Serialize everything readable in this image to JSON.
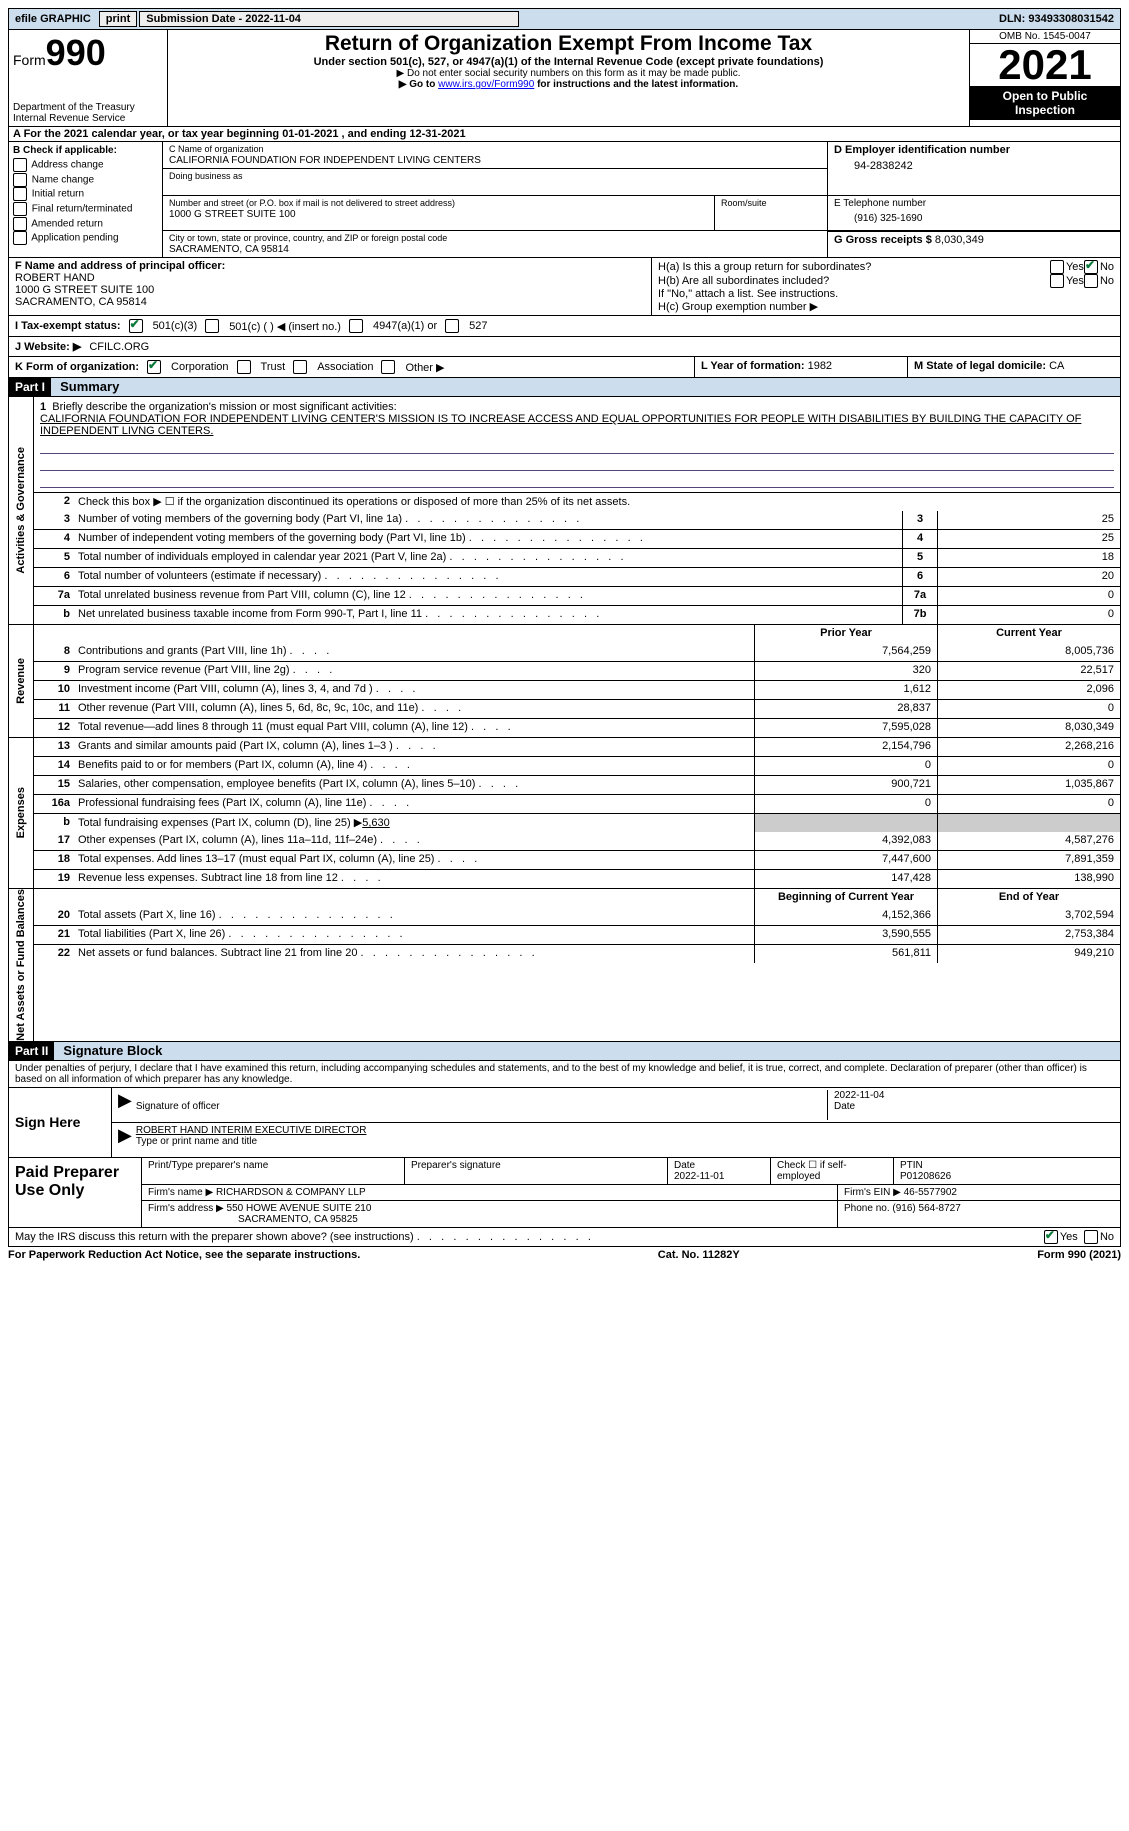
{
  "topbar": {
    "efile": "efile GRAPHIC",
    "print": "print",
    "submission": "Submission Date - 2022-11-04",
    "dln": "DLN: 93493308031542"
  },
  "header": {
    "form_label": "Form",
    "form_num": "990",
    "dept": "Department of the Treasury",
    "irs": "Internal Revenue Service",
    "title": "Return of Organization Exempt From Income Tax",
    "sub1": "Under section 501(c), 527, or 4947(a)(1) of the Internal Revenue Code (except private foundations)",
    "sub2": "▶ Do not enter social security numbers on this form as it may be made public.",
    "sub3_pre": "▶ Go to ",
    "sub3_link": "www.irs.gov/Form990",
    "sub3_post": " for instructions and the latest information.",
    "omb": "OMB No. 1545-0047",
    "year": "2021",
    "public": "Open to Public Inspection"
  },
  "section_a": "A For the 2021 calendar year, or tax year beginning 01-01-2021   , and ending 12-31-2021",
  "section_b": {
    "label": "B Check if applicable:",
    "items": [
      "Address change",
      "Name change",
      "Initial return",
      "Final return/terminated",
      "Amended return",
      "Application pending"
    ]
  },
  "section_c": {
    "name_label": "C Name of organization",
    "name": "CALIFORNIA FOUNDATION FOR INDEPENDENT LIVING CENTERS",
    "dba_label": "Doing business as",
    "street_label": "Number and street (or P.O. box if mail is not delivered to street address)",
    "street": "1000 G STREET SUITE 100",
    "suite_label": "Room/suite",
    "city_label": "City or town, state or province, country, and ZIP or foreign postal code",
    "city": "SACRAMENTO, CA  95814"
  },
  "section_d": {
    "label": "D Employer identification number",
    "value": "94-2838242"
  },
  "section_e": {
    "label": "E Telephone number",
    "value": "(916) 325-1690"
  },
  "section_g": {
    "label": "G Gross receipts $",
    "value": "8,030,349"
  },
  "section_f": {
    "label": "F Name and address of principal officer:",
    "name": "ROBERT HAND",
    "street": "1000 G STREET SUITE 100",
    "city": "SACRAMENTO, CA  95814"
  },
  "section_h": {
    "ha": "H(a)  Is this a group return for subordinates?",
    "hb": "H(b)  Are all subordinates included?",
    "hb_note": "If \"No,\" attach a list. See instructions.",
    "hc": "H(c)  Group exemption number ▶"
  },
  "section_i": {
    "label": "I  Tax-exempt status:",
    "opt1": "501(c)(3)",
    "opt2": "501(c) (  ) ◀ (insert no.)",
    "opt3": "4947(a)(1) or",
    "opt4": "527"
  },
  "section_j": {
    "label": "J  Website: ▶",
    "value": "CFILC.ORG"
  },
  "section_k": {
    "label": "K Form of organization:",
    "corp": "Corporation",
    "trust": "Trust",
    "assoc": "Association",
    "other": "Other ▶"
  },
  "section_l": {
    "label": "L Year of formation:",
    "value": "1982"
  },
  "section_m": {
    "label": "M State of legal domicile:",
    "value": "CA"
  },
  "part1": {
    "header": "Part I",
    "title": "Summary"
  },
  "sidebars": {
    "act_gov": "Activities & Governance",
    "revenue": "Revenue",
    "expenses": "Expenses",
    "net": "Net Assets or Fund Balances"
  },
  "mission": {
    "num": "1",
    "label": "Briefly describe the organization's mission or most significant activities:",
    "text": "CALIFORNIA FOUNDATION FOR INDEPENDENT LIVING CENTER'S MISSION IS TO INCREASE ACCESS AND EQUAL OPPORTUNITIES FOR PEOPLE WITH DISABILITIES BY BUILDING THE CAPACITY OF INDEPENDENT LIVNG CENTERS."
  },
  "line2": "Check this box ▶ ☐ if the organization discontinued its operations or disposed of more than 25% of its net assets.",
  "lines_gov": [
    {
      "n": "3",
      "t": "Number of voting members of the governing body (Part VI, line 1a)",
      "box": "3",
      "v": "25"
    },
    {
      "n": "4",
      "t": "Number of independent voting members of the governing body (Part VI, line 1b)",
      "box": "4",
      "v": "25"
    },
    {
      "n": "5",
      "t": "Total number of individuals employed in calendar year 2021 (Part V, line 2a)",
      "box": "5",
      "v": "18"
    },
    {
      "n": "6",
      "t": "Total number of volunteers (estimate if necessary)",
      "box": "6",
      "v": "20"
    },
    {
      "n": "7a",
      "t": "Total unrelated business revenue from Part VIII, column (C), line 12",
      "box": "7a",
      "v": "0"
    },
    {
      "n": "b",
      "t": "Net unrelated business taxable income from Form 990-T, Part I, line 11",
      "box": "7b",
      "v": "0"
    }
  ],
  "col_headers": {
    "prior": "Prior Year",
    "current": "Current Year",
    "boy": "Beginning of Current Year",
    "eoy": "End of Year"
  },
  "lines_rev": [
    {
      "n": "8",
      "t": "Contributions and grants (Part VIII, line 1h)",
      "p": "7,564,259",
      "c": "8,005,736"
    },
    {
      "n": "9",
      "t": "Program service revenue (Part VIII, line 2g)",
      "p": "320",
      "c": "22,517"
    },
    {
      "n": "10",
      "t": "Investment income (Part VIII, column (A), lines 3, 4, and 7d )",
      "p": "1,612",
      "c": "2,096"
    },
    {
      "n": "11",
      "t": "Other revenue (Part VIII, column (A), lines 5, 6d, 8c, 9c, 10c, and 11e)",
      "p": "28,837",
      "c": "0"
    },
    {
      "n": "12",
      "t": "Total revenue—add lines 8 through 11 (must equal Part VIII, column (A), line 12)",
      "p": "7,595,028",
      "c": "8,030,349"
    }
  ],
  "lines_exp": [
    {
      "n": "13",
      "t": "Grants and similar amounts paid (Part IX, column (A), lines 1–3 )",
      "p": "2,154,796",
      "c": "2,268,216"
    },
    {
      "n": "14",
      "t": "Benefits paid to or for members (Part IX, column (A), line 4)",
      "p": "0",
      "c": "0"
    },
    {
      "n": "15",
      "t": "Salaries, other compensation, employee benefits (Part IX, column (A), lines 5–10)",
      "p": "900,721",
      "c": "1,035,867"
    },
    {
      "n": "16a",
      "t": "Professional fundraising fees (Part IX, column (A), line 11e)",
      "p": "0",
      "c": "0"
    }
  ],
  "line16b": {
    "n": "b",
    "t": "Total fundraising expenses (Part IX, column (D), line 25) ▶",
    "v": "5,630"
  },
  "lines_exp2": [
    {
      "n": "17",
      "t": "Other expenses (Part IX, column (A), lines 11a–11d, 11f–24e)",
      "p": "4,392,083",
      "c": "4,587,276"
    },
    {
      "n": "18",
      "t": "Total expenses. Add lines 13–17 (must equal Part IX, column (A), line 25)",
      "p": "7,447,600",
      "c": "7,891,359"
    },
    {
      "n": "19",
      "t": "Revenue less expenses. Subtract line 18 from line 12",
      "p": "147,428",
      "c": "138,990"
    }
  ],
  "lines_net": [
    {
      "n": "20",
      "t": "Total assets (Part X, line 16)",
      "p": "4,152,366",
      "c": "3,702,594"
    },
    {
      "n": "21",
      "t": "Total liabilities (Part X, line 26)",
      "p": "3,590,555",
      "c": "2,753,384"
    },
    {
      "n": "22",
      "t": "Net assets or fund balances. Subtract line 21 from line 20",
      "p": "561,811",
      "c": "949,210"
    }
  ],
  "part2": {
    "header": "Part II",
    "title": "Signature Block"
  },
  "penalties": "Under penalties of perjury, I declare that I have examined this return, including accompanying schedules and statements, and to the best of my knowledge and belief, it is true, correct, and complete. Declaration of preparer (other than officer) is based on all information of which preparer has any knowledge.",
  "sign": {
    "label": "Sign Here",
    "sig_label": "Signature of officer",
    "date": "2022-11-04",
    "date_label": "Date",
    "name": "ROBERT HAND INTERIM EXECUTIVE DIRECTOR",
    "name_label": "Type or print name and title"
  },
  "preparer": {
    "label": "Paid Preparer Use Only",
    "col1": "Print/Type preparer's name",
    "col2": "Preparer's signature",
    "col3_label": "Date",
    "col3": "2022-11-01",
    "col4": "Check ☐ if self-employed",
    "col5_label": "PTIN",
    "col5": "P01208626",
    "firm_label": "Firm's name    ▶",
    "firm": "RICHARDSON & COMPANY LLP",
    "ein_label": "Firm's EIN ▶",
    "ein": "46-5577902",
    "addr_label": "Firm's address ▶",
    "addr1": "550 HOWE AVENUE SUITE 210",
    "addr2": "SACRAMENTO, CA  95825",
    "phone_label": "Phone no.",
    "phone": "(916) 564-8727"
  },
  "discuss": "May the IRS discuss this return with the preparer shown above? (see instructions)",
  "footer": {
    "pra": "For Paperwork Reduction Act Notice, see the separate instructions.",
    "cat": "Cat. No. 11282Y",
    "form": "Form 990 (2021)"
  },
  "yes": "Yes",
  "no": "No"
}
